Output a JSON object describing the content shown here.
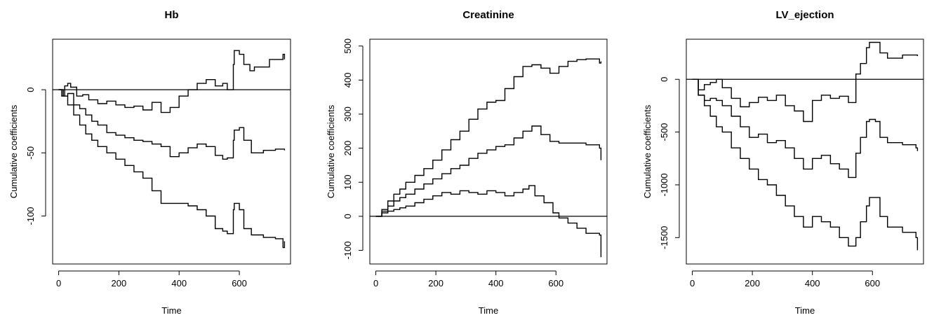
{
  "chart_data": [
    {
      "type": "line",
      "title": "Hb",
      "xlabel": "Time",
      "ylabel": "Cumulative coefficients",
      "xlim": [
        -20,
        770
      ],
      "ylim": [
        -138,
        40
      ],
      "xticks": [
        0,
        200,
        400,
        600
      ],
      "yticks": [
        0,
        -50,
        -100
      ],
      "hline": 0,
      "grid": false,
      "series": [
        {
          "x": [
            0,
            10,
            20,
            30,
            40,
            60,
            80,
            100,
            130,
            160,
            190,
            220,
            250,
            280,
            310,
            340,
            370,
            400,
            430,
            460,
            490,
            520,
            545,
            560,
            580,
            583,
            600,
            615,
            635,
            650,
            700,
            745,
            750
          ],
          "y": [
            0,
            -5,
            3,
            5,
            2,
            -5,
            -4,
            -8,
            -11,
            -9,
            -12,
            -14,
            -13,
            -16,
            -10,
            -18,
            -14,
            -5,
            0,
            5,
            8,
            3,
            5,
            0,
            20,
            31,
            28,
            20,
            15,
            18,
            24,
            28,
            24
          ]
        },
        {
          "x": [
            0,
            15,
            30,
            50,
            70,
            90,
            110,
            130,
            160,
            190,
            220,
            250,
            280,
            310,
            340,
            370,
            400,
            430,
            460,
            490,
            520,
            545,
            560,
            580,
            583,
            600,
            615,
            640,
            680,
            720,
            750
          ],
          "y": [
            0,
            -5,
            -3,
            -12,
            -15,
            -20,
            -25,
            -28,
            -34,
            -36,
            -38,
            -40,
            -41,
            -43,
            -45,
            -53,
            -50,
            -46,
            -43,
            -45,
            -52,
            -55,
            -54,
            -40,
            -32,
            -30,
            -40,
            -50,
            -48,
            -47,
            -48
          ]
        },
        {
          "x": [
            0,
            15,
            30,
            50,
            70,
            90,
            110,
            130,
            160,
            190,
            220,
            250,
            280,
            310,
            340,
            370,
            400,
            430,
            460,
            490,
            520,
            545,
            560,
            580,
            583,
            600,
            615,
            640,
            680,
            720,
            745,
            750
          ],
          "y": [
            0,
            -5,
            -12,
            -20,
            -28,
            -35,
            -40,
            -45,
            -50,
            -55,
            -60,
            -65,
            -70,
            -80,
            -90,
            -90,
            -90,
            -92,
            -95,
            -100,
            -110,
            -112,
            -114,
            -95,
            -90,
            -95,
            -110,
            -115,
            -117,
            -118,
            -125,
            -120
          ]
        }
      ]
    },
    {
      "type": "line",
      "title": "Creatinine",
      "xlabel": "Time",
      "ylabel": "Cumulative coefficients",
      "xlim": [
        -20,
        770
      ],
      "ylim": [
        -140,
        520
      ],
      "xticks": [
        0,
        200,
        400,
        600
      ],
      "yticks": [
        -100,
        0,
        100,
        200,
        300,
        400,
        500
      ],
      "hline": 0,
      "grid": false,
      "series": [
        {
          "x": [
            0,
            20,
            40,
            60,
            80,
            100,
            130,
            160,
            190,
            220,
            250,
            280,
            310,
            340,
            370,
            400,
            430,
            460,
            490,
            520,
            550,
            580,
            610,
            640,
            670,
            700,
            745,
            750
          ],
          "y": [
            0,
            20,
            45,
            65,
            80,
            100,
            120,
            140,
            165,
            195,
            225,
            250,
            285,
            315,
            335,
            340,
            375,
            410,
            440,
            445,
            435,
            420,
            440,
            455,
            460,
            462,
            450,
            455
          ]
        },
        {
          "x": [
            0,
            20,
            40,
            60,
            80,
            100,
            130,
            160,
            190,
            220,
            250,
            280,
            310,
            340,
            370,
            400,
            430,
            460,
            490,
            520,
            550,
            580,
            610,
            640,
            670,
            700,
            745,
            750
          ],
          "y": [
            0,
            15,
            30,
            45,
            55,
            65,
            80,
            95,
            110,
            125,
            140,
            150,
            170,
            185,
            195,
            205,
            210,
            230,
            250,
            265,
            240,
            220,
            215,
            215,
            215,
            210,
            200,
            165
          ]
        },
        {
          "x": [
            0,
            20,
            40,
            60,
            80,
            100,
            130,
            160,
            190,
            220,
            250,
            280,
            310,
            340,
            370,
            400,
            430,
            460,
            490,
            510,
            530,
            560,
            590,
            610,
            640,
            670,
            700,
            745,
            750
          ],
          "y": [
            0,
            10,
            15,
            20,
            25,
            30,
            40,
            50,
            60,
            70,
            65,
            75,
            70,
            65,
            75,
            70,
            60,
            70,
            80,
            90,
            60,
            40,
            10,
            -5,
            -20,
            -35,
            -50,
            -55,
            -120
          ]
        }
      ]
    },
    {
      "type": "line",
      "title": "LV_ejection",
      "xlabel": "Time",
      "ylabel": "Cumulative coefficients",
      "xlim": [
        -20,
        770
      ],
      "ylim": [
        -1750,
        380
      ],
      "xticks": [
        0,
        200,
        400,
        600
      ],
      "yticks": [
        0,
        -500,
        -1000,
        -1500
      ],
      "hline": 0,
      "grid": false,
      "series": [
        {
          "x": [
            0,
            20,
            40,
            60,
            80,
            100,
            130,
            160,
            190,
            220,
            250,
            280,
            310,
            340,
            370,
            400,
            430,
            460,
            490,
            520,
            545,
            560,
            580,
            590,
            610,
            625,
            650,
            700,
            745,
            750
          ],
          "y": [
            0,
            -100,
            -50,
            -30,
            0,
            -80,
            -180,
            -260,
            -220,
            -170,
            -200,
            -150,
            -250,
            -300,
            -400,
            -200,
            -150,
            -180,
            -160,
            -220,
            50,
            150,
            300,
            350,
            350,
            250,
            200,
            230,
            230,
            220
          ]
        },
        {
          "x": [
            0,
            20,
            40,
            60,
            80,
            100,
            130,
            160,
            190,
            220,
            250,
            280,
            310,
            340,
            370,
            400,
            430,
            460,
            490,
            520,
            545,
            560,
            580,
            590,
            610,
            625,
            650,
            700,
            745,
            750
          ],
          "y": [
            0,
            -150,
            -200,
            -180,
            -200,
            -250,
            -350,
            -450,
            -550,
            -520,
            -600,
            -580,
            -650,
            -750,
            -850,
            -750,
            -720,
            -800,
            -850,
            -930,
            -700,
            -550,
            -400,
            -380,
            -400,
            -550,
            -600,
            -620,
            -650,
            -680
          ]
        },
        {
          "x": [
            0,
            20,
            40,
            60,
            80,
            100,
            130,
            160,
            190,
            220,
            250,
            280,
            310,
            340,
            370,
            400,
            430,
            460,
            490,
            520,
            545,
            560,
            580,
            590,
            610,
            625,
            650,
            700,
            745,
            750
          ],
          "y": [
            0,
            -150,
            -250,
            -350,
            -450,
            -500,
            -650,
            -750,
            -850,
            -950,
            -1000,
            -1100,
            -1200,
            -1300,
            -1400,
            -1300,
            -1350,
            -1400,
            -1500,
            -1580,
            -1500,
            -1350,
            -1200,
            -1120,
            -1120,
            -1300,
            -1400,
            -1450,
            -1500,
            -1620
          ]
        }
      ]
    }
  ]
}
